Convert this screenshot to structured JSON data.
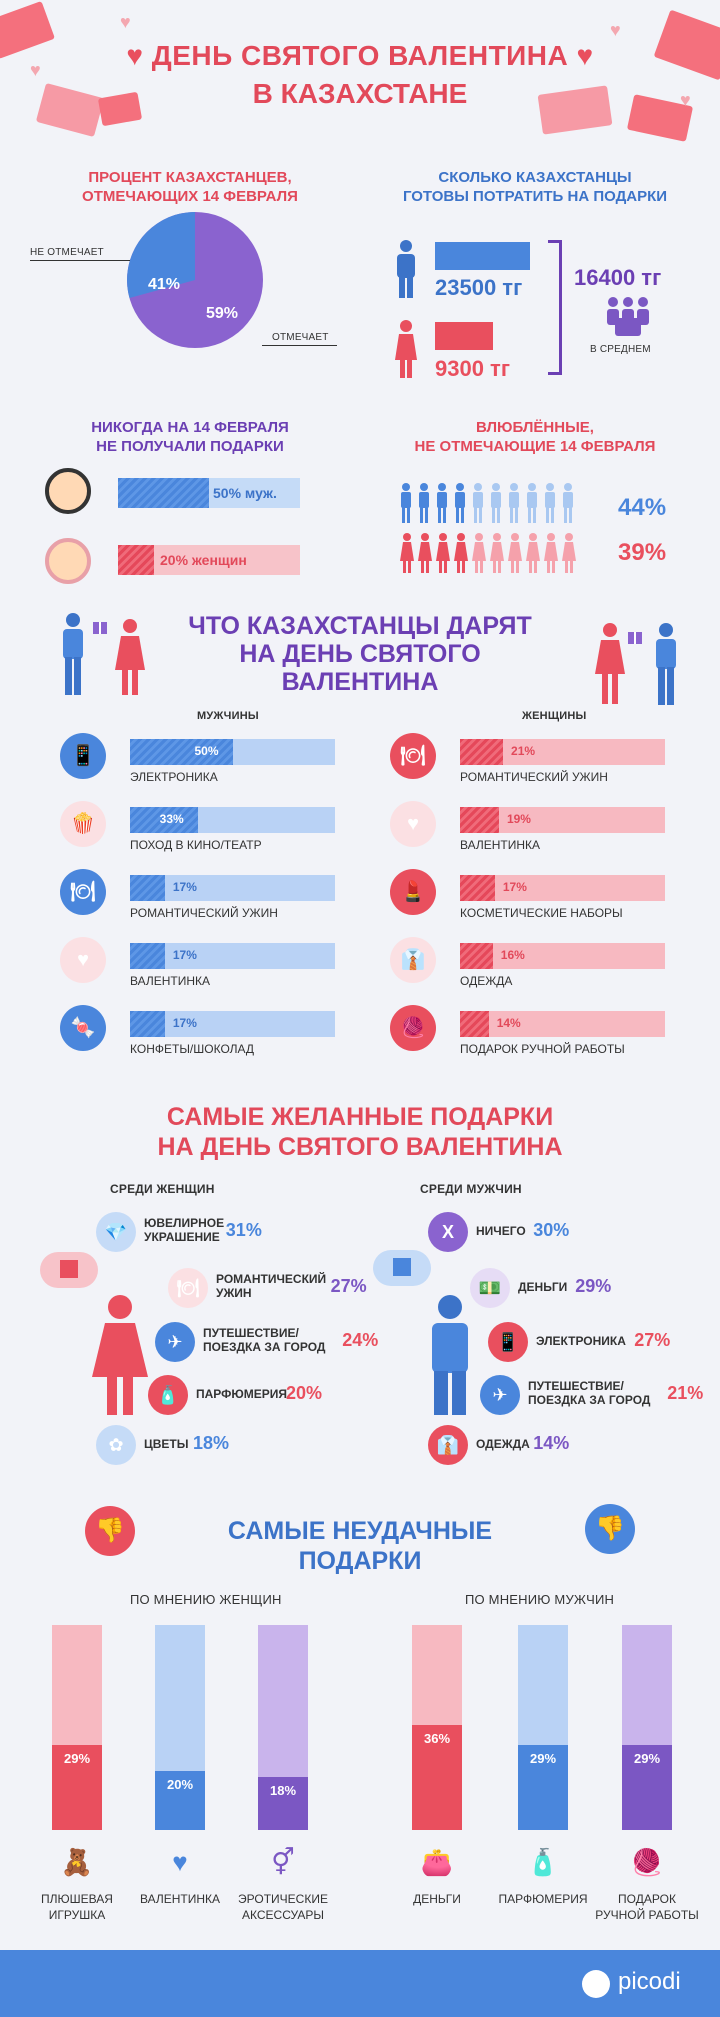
{
  "header": {
    "title_line1": "ДЕНЬ СВЯТОГО ВАЛЕНТИНА",
    "title_line2": "В КАЗАХСТАНЕ"
  },
  "celebrate": {
    "title_line1": "ПРОЦЕНТ КАЗАХСТАНЦЕВ,",
    "title_line2": "ОТМЕЧАЮЩИХ 14 ФЕВРАЛЯ",
    "not_label": "НЕ ОТМЕЧАЕТ",
    "not_pct": "41%",
    "yes_label": "ОТМЕЧАЕТ",
    "yes_pct": "59%"
  },
  "spend": {
    "title_line1": "СКОЛЬКО КАЗАХСТАНЦЫ",
    "title_line2": "ГОТОВЫ ПОТРАТИТЬ НА ПОДАРКИ",
    "men": "23500 тг",
    "women": "9300 тг",
    "avg": "16400 тг",
    "avg_label": "В СРЕДНЕМ"
  },
  "never": {
    "title_line1": "НИКОГДА НА 14 ФЕВРАЛЯ",
    "title_line2": "НЕ ПОЛУЧАЛИ ПОДАРКИ",
    "men": "50% муж.",
    "women": "20% женщин"
  },
  "lovers": {
    "title_line1": "ВЛЮБЛЁННЫЕ,",
    "title_line2": "НЕ ОТМЕЧАЮЩИЕ 14 ФЕВРАЛЯ",
    "men_pct": "44%",
    "women_pct": "39%"
  },
  "gifts": {
    "title_line1": "ЧТО КАЗАХСТАНЦЫ ДАРЯТ",
    "title_line2": "НА ДЕНЬ СВЯТОГО",
    "title_line3": "ВАЛЕНТИНА",
    "men_header": "МУЖЧИНЫ",
    "women_header": "ЖЕНЩИНЫ",
    "men": [
      {
        "label": "ЭЛЕКТРОНИКА",
        "pct": "50%",
        "value": 50,
        "icon": "phone-icon"
      },
      {
        "label": "ПОХОД  В КИНО/ТЕАТР",
        "pct": "33%",
        "value": 33,
        "icon": "popcorn-icon"
      },
      {
        "label": "РОМАНТИЧЕСКИЙ УЖИН",
        "pct": "17%",
        "value": 17,
        "icon": "dinner-icon"
      },
      {
        "label": "ВАЛЕНТИНКА",
        "pct": "17%",
        "value": 17,
        "icon": "card-icon"
      },
      {
        "label": "КОНФЕТЫ/ШОКОЛАД",
        "pct": "17%",
        "value": 17,
        "icon": "candy-icon"
      }
    ],
    "women": [
      {
        "label": "РОМАНТИЧЕСКИЙ УЖИН",
        "pct": "21%",
        "value": 21,
        "icon": "dinner-icon"
      },
      {
        "label": "ВАЛЕНТИНКА",
        "pct": "19%",
        "value": 19,
        "icon": "card-icon"
      },
      {
        "label": "КОСМЕТИЧЕСКИЕ НАБОРЫ",
        "pct": "17%",
        "value": 17,
        "icon": "cosmetics-icon"
      },
      {
        "label": "ОДЕЖДА",
        "pct": "16%",
        "value": 16,
        "icon": "shirt-icon"
      },
      {
        "label": "ПОДАРОК РУЧНОЙ РАБОТЫ",
        "pct": "14%",
        "value": 14,
        "icon": "yarn-icon"
      }
    ]
  },
  "wanted": {
    "title_line1": "САМЫЕ ЖЕЛАННЫЕ ПОДАРКИ",
    "title_line2": "НА ДЕНЬ СВЯТОГО ВАЛЕНТИНА",
    "women_header": "СРЕДИ ЖЕНЩИН",
    "men_header": "СРЕДИ МУЖЧИН",
    "women": [
      {
        "label1": "ЮВЕЛИРНОЕ",
        "label2": "УКРАШЕНИЕ",
        "pct": "31%"
      },
      {
        "label1": "РОМАНТИЧЕСКИЙ",
        "label2": "УЖИН",
        "pct": "27%"
      },
      {
        "label1": "ПУТЕШЕСТВИЕ/",
        "label2": "ПОЕЗДКА ЗА ГОРОД",
        "pct": "24%"
      },
      {
        "label1": "ПАРФЮМЕРИЯ",
        "label2": "",
        "pct": "20%"
      },
      {
        "label1": "ЦВЕТЫ",
        "label2": "",
        "pct": "18%"
      }
    ],
    "men": [
      {
        "label1": "НИЧЕГО",
        "label2": "",
        "pct": "30%"
      },
      {
        "label1": "ДЕНЬГИ",
        "label2": "",
        "pct": "29%"
      },
      {
        "label1": "ЭЛЕКТРОНИКА",
        "label2": "",
        "pct": "27%"
      },
      {
        "label1": "ПУТЕШЕСТВИЕ/",
        "label2": "ПОЕЗДКА ЗА ГОРОД",
        "pct": "21%"
      },
      {
        "label1": "ОДЕЖДА",
        "label2": "",
        "pct": "14%"
      }
    ]
  },
  "worst": {
    "title_line1": "САМЫЕ НЕУДАЧНЫЕ",
    "title_line2": "ПОДАРКИ",
    "women_header": "ПО МНЕНИЮ ЖЕНЩИН",
    "men_header": "ПО МНЕНИЮ МУЖЧИН",
    "women": [
      {
        "label1": "ПЛЮШЕВАЯ",
        "label2": "ИГРУШКА",
        "pct": "29%",
        "value": 29
      },
      {
        "label1": "ВАЛЕНТИНКА",
        "label2": "",
        "pct": "20%",
        "value": 20
      },
      {
        "label1": "ЭРОТИЧЕСКИЕ",
        "label2": "АКСЕССУАРЫ",
        "pct": "18%",
        "value": 18
      }
    ],
    "men": [
      {
        "label1": "ДЕНЬГИ",
        "label2": "",
        "pct": "36%",
        "value": 36
      },
      {
        "label1": "ПАРФЮМЕРИЯ",
        "label2": "",
        "pct": "29%",
        "value": 29
      },
      {
        "label1": "ПОДАРОК",
        "label2": "РУЧНОЙ РАБОТЫ",
        "pct": "29%",
        "value": 29
      }
    ]
  },
  "footer": {
    "brand": "picodi"
  },
  "colors": {
    "red": "#e94f5e",
    "blue": "#4a86dc",
    "purple": "#7b57c3",
    "footer": "#4a86dc"
  }
}
